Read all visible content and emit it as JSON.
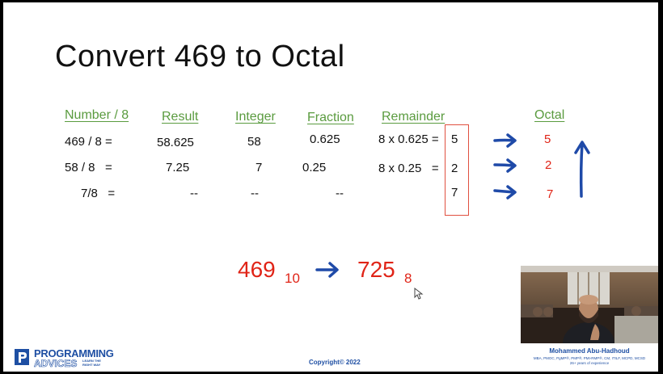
{
  "slide": {
    "title": "Convert 469 to Octal",
    "headers": {
      "number": "Number / 8",
      "result": "Result",
      "integer": "Integer",
      "fraction": "Fraction",
      "remainder": "Remainder",
      "octal": "Octal"
    },
    "rows": [
      {
        "number": "469 / 8 =",
        "result": "58.625",
        "integer": "58",
        "fraction": "0.625",
        "remainder_calc": "8 x 0.625 =",
        "remainder": "5",
        "octal": "5"
      },
      {
        "number": "58 / 8   =",
        "result": "7.25",
        "integer": "7",
        "fraction": "0.25",
        "remainder_calc": "8 x 0.25   =",
        "remainder": "2",
        "octal": "2"
      },
      {
        "number": "7/8   =",
        "result": "--",
        "integer": "--",
        "fraction": "--",
        "remainder_calc": "",
        "remainder": "7",
        "octal": "7"
      }
    ],
    "conversion": {
      "decimal": "469",
      "decimal_base": "10",
      "octal": "725",
      "octal_base": "8"
    },
    "copyright": "Copyright© 2022"
  },
  "presenter": {
    "name": "Mohammed Abu-Hadhoud",
    "credentials": "MBA, PMOC, PgMP®, PMP®, PMI-RMP®, CM, ITILF, MCPD, MCSD",
    "experience": "26+ years of experience"
  },
  "logo": {
    "line1": "PROGRAMMING",
    "line2": "ADVICES",
    "tagline": "LEARN THE RIGHT WAY"
  },
  "colors": {
    "header_green": "#5a9b3f",
    "accent_red": "#e02417",
    "arrow_blue": "#1f4aa8"
  }
}
